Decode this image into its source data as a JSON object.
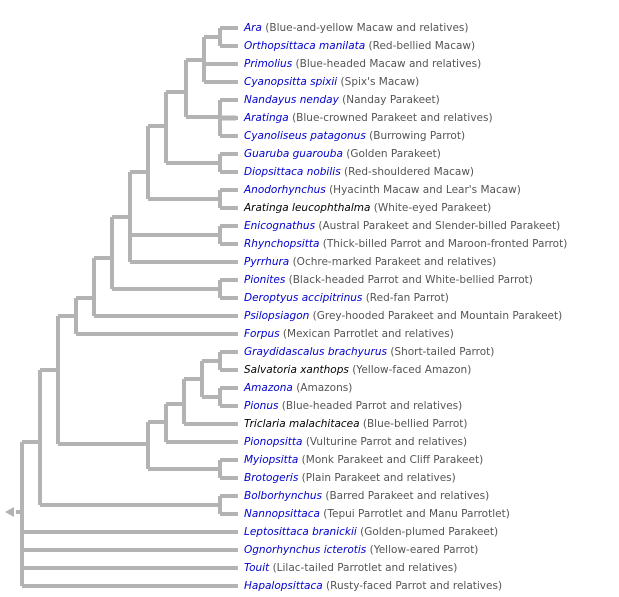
{
  "tree": {
    "leaves": [
      {
        "taxon": "Ara",
        "common": "(Blue-and-yellow Macaw and relatives)",
        "link": true
      },
      {
        "taxon": "Orthopsittaca manilata",
        "common": "(Red-bellied Macaw)",
        "link": true
      },
      {
        "taxon": "Primolius",
        "common": "(Blue-headed Macaw and relatives)",
        "link": true
      },
      {
        "taxon": "Cyanopsitta spixii",
        "common": "(Spix's Macaw)",
        "link": true
      },
      {
        "taxon": "Nandayus nenday",
        "common": "(Nanday Parakeet)",
        "link": true
      },
      {
        "taxon": "Aratinga",
        "common": "(Blue-crowned Parakeet and relatives)",
        "link": true
      },
      {
        "taxon": "Cyanoliseus patagonus",
        "common": "(Burrowing Parrot)",
        "link": true
      },
      {
        "taxon": "Guaruba guarouba",
        "common": "(Golden Parakeet)",
        "link": true
      },
      {
        "taxon": "Diopsittaca nobilis",
        "common": "(Red-shouldered Macaw)",
        "link": true
      },
      {
        "taxon": "Anodorhynchus",
        "common": "(Hyacinth Macaw and Lear's Macaw)",
        "link": true
      },
      {
        "taxon": "Aratinga leucophthalma",
        "common": "(White-eyed Parakeet)",
        "link": false
      },
      {
        "taxon": "Enicognathus",
        "common": "(Austral Parakeet and Slender-billed Parakeet)",
        "link": true
      },
      {
        "taxon": "Rhynchopsitta",
        "common": "(Thick-billed Parrot and Maroon-fronted Parrot)",
        "link": true
      },
      {
        "taxon": "Pyrrhura",
        "common": "(Ochre-marked Parakeet and relatives)",
        "link": true
      },
      {
        "taxon": "Pionites",
        "common": "(Black-headed Parrot and White-bellied Parrot)",
        "link": true
      },
      {
        "taxon": "Deroptyus accipitrinus",
        "common": "(Red-fan Parrot)",
        "link": true
      },
      {
        "taxon": "Psilopsiagon",
        "common": "(Grey-hooded Parakeet and Mountain Parakeet)",
        "link": true
      },
      {
        "taxon": "Forpus",
        "common": "(Mexican Parrotlet and relatives)",
        "link": true
      },
      {
        "taxon": "Graydidascalus brachyurus",
        "common": "(Short-tailed Parrot)",
        "link": true
      },
      {
        "taxon": "Salvatoria xanthops",
        "common": "(Yellow-faced Amazon)",
        "link": false
      },
      {
        "taxon": "Amazona",
        "common": "(Amazons)",
        "link": true
      },
      {
        "taxon": "Pionus",
        "common": "(Blue-headed Parrot and relatives)",
        "link": true
      },
      {
        "taxon": "Triclaria malachitacea",
        "common": "(Blue-bellied Parrot)",
        "link": false
      },
      {
        "taxon": "Pionopsitta",
        "common": "(Vulturine Parrot and relatives)",
        "link": true
      },
      {
        "taxon": "Myiopsitta",
        "common": "(Monk Parakeet and Cliff Parakeet)",
        "link": true
      },
      {
        "taxon": "Brotogeris",
        "common": "(Plain Parakeet and relatives)",
        "link": true
      },
      {
        "taxon": "Bolborhynchus",
        "common": "(Barred Parakeet and relatives)",
        "link": true
      },
      {
        "taxon": "Nannopsittaca",
        "common": "(Tepui Parrotlet and Manu Parrotlet)",
        "link": true
      },
      {
        "taxon": "Leptosittaca branickii",
        "common": "(Golden-plumed Parakeet)",
        "link": true
      },
      {
        "taxon": "Ognorhynchus icterotis",
        "common": "(Yellow-eared Parrot)",
        "link": true
      },
      {
        "taxon": "Touit",
        "common": "(Lilac-tailed Parrotlet and relatives)",
        "link": true
      },
      {
        "taxon": "Hapalopsittaca",
        "common": "(Rusty-faced Parrot and relatives)",
        "link": true
      }
    ],
    "branch_color": "#b3b3b3",
    "link_color": "#0000cc",
    "plain_taxon_color": "#000000",
    "common_name_color": "#555555"
  }
}
